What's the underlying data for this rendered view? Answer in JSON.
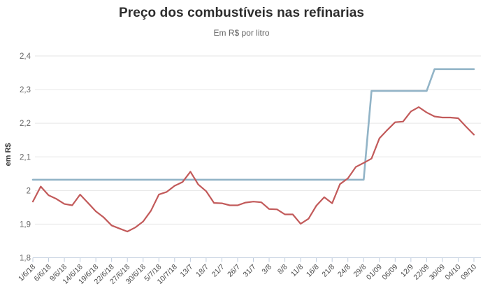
{
  "chart_data": {
    "type": "line",
    "title": "Preço dos combustíveis nas refinarias",
    "subtitle": "Em R$ por litro",
    "ylabel": "em R$",
    "xlabel": "",
    "ylim": [
      1.8,
      2.4
    ],
    "yticks": [
      1.8,
      1.9,
      2.0,
      2.1,
      2.2,
      2.3,
      2.4
    ],
    "ytick_labels": [
      "1,8",
      "1,9",
      "2",
      "2,1",
      "2,2",
      "2,3",
      "2,4"
    ],
    "grid": true,
    "legend": "none",
    "label_every": 2,
    "x_tick_labels": [
      "1/6/18",
      "6/6/18",
      "9/6/18",
      "14/6/18",
      "19/6/18",
      "22/6/18",
      "27/6/18",
      "30/6/18",
      "5/7/18",
      "10/7/18",
      "13/7",
      "18/7",
      "21/7",
      "26/7",
      "31/7",
      "3/8",
      "8/8",
      "11/8",
      "16/8",
      "21/8",
      "24/8",
      "29/8",
      "01/09",
      "06/09",
      "12/9",
      "22/09",
      "30/09",
      "04/10",
      "09/10"
    ],
    "grid_color": "#e6e6e6",
    "axis_color": "#bfccdd",
    "axis_text_color": "#666666",
    "tick_text_color": "#4a4a4a",
    "series": [
      {
        "id": "blue-step-line",
        "color": "#92b4c7",
        "width": 2.6,
        "values": [
          2.032,
          2.032,
          2.032,
          2.032,
          2.032,
          2.032,
          2.032,
          2.032,
          2.032,
          2.032,
          2.032,
          2.032,
          2.032,
          2.032,
          2.032,
          2.032,
          2.032,
          2.032,
          2.032,
          2.032,
          2.032,
          2.032,
          2.032,
          2.032,
          2.032,
          2.032,
          2.032,
          2.032,
          2.032,
          2.032,
          2.032,
          2.032,
          2.032,
          2.032,
          2.032,
          2.032,
          2.032,
          2.032,
          2.032,
          2.032,
          2.032,
          2.032,
          2.032,
          2.296,
          2.296,
          2.296,
          2.296,
          2.296,
          2.296,
          2.296,
          2.296,
          2.361,
          2.361,
          2.361,
          2.361,
          2.361,
          2.361
        ]
      },
      {
        "id": "red-line",
        "color": "#c25a5a",
        "width": 2.2,
        "values": [
          1.967,
          2.012,
          1.986,
          1.975,
          1.96,
          1.956,
          1.988,
          1.963,
          1.938,
          1.92,
          1.896,
          1.887,
          1.878,
          1.89,
          1.908,
          1.94,
          1.988,
          1.996,
          2.014,
          2.025,
          2.056,
          2.018,
          1.998,
          1.963,
          1.962,
          1.956,
          1.956,
          1.964,
          1.967,
          1.965,
          1.945,
          1.944,
          1.929,
          1.929,
          1.901,
          1.916,
          1.955,
          1.98,
          1.962,
          2.019,
          2.036,
          2.07,
          2.082,
          2.095,
          2.155,
          2.18,
          2.203,
          2.205,
          2.235,
          2.248,
          2.232,
          2.22,
          2.217,
          2.217,
          2.215,
          2.19,
          2.166
        ]
      }
    ]
  }
}
